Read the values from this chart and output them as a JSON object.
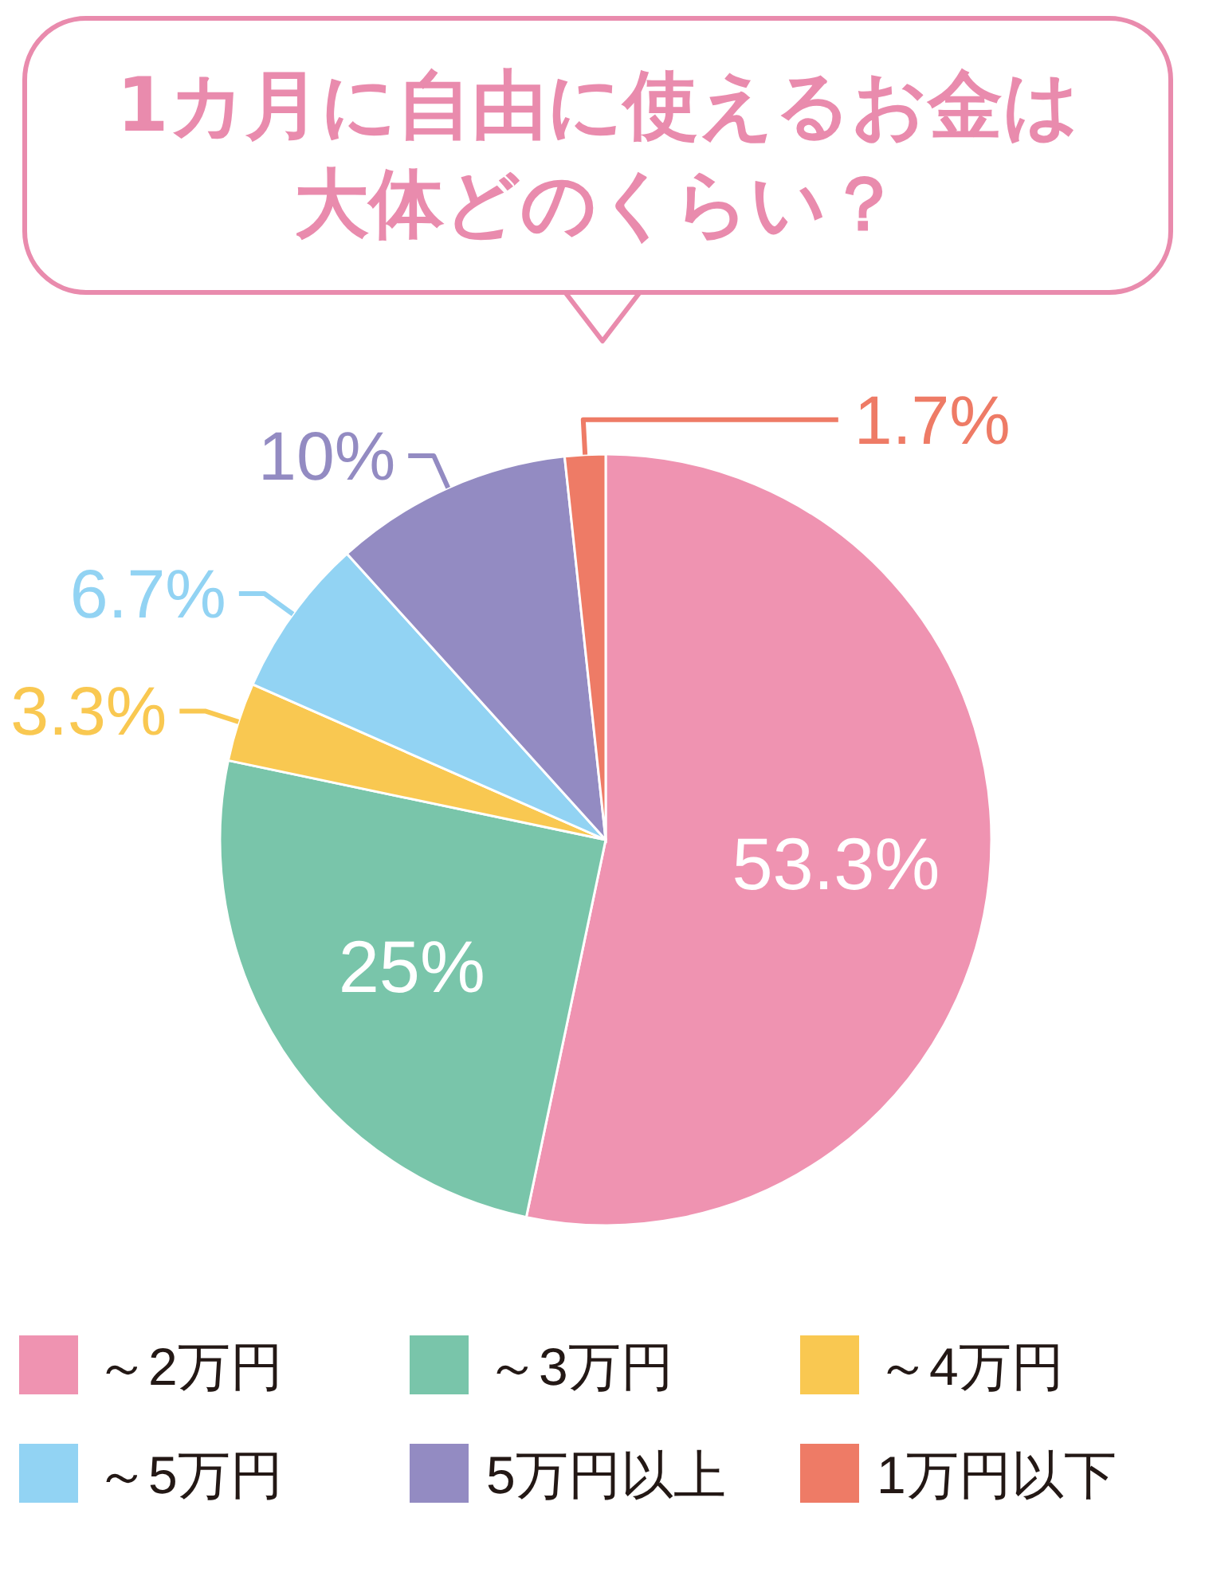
{
  "chart_data": {
    "type": "pie",
    "title": "1カ月に自由に使えるお金は大体どのくらい？",
    "categories": [
      "～2万円",
      "～3万円",
      "～4万円",
      "～5万円",
      "5万円以上",
      "1万円以下"
    ],
    "values": [
      53.3,
      25,
      3.3,
      6.7,
      10,
      1.7
    ],
    "value_labels": [
      "53.3%",
      "25%",
      "3.3%",
      "6.7%",
      "10%",
      "1.7%"
    ],
    "colors": [
      "#ef93b1",
      "#79c5aa",
      "#f9c851",
      "#92d3f3",
      "#938bc2",
      "#ee7b66"
    ],
    "legend": "bottom"
  }
}
